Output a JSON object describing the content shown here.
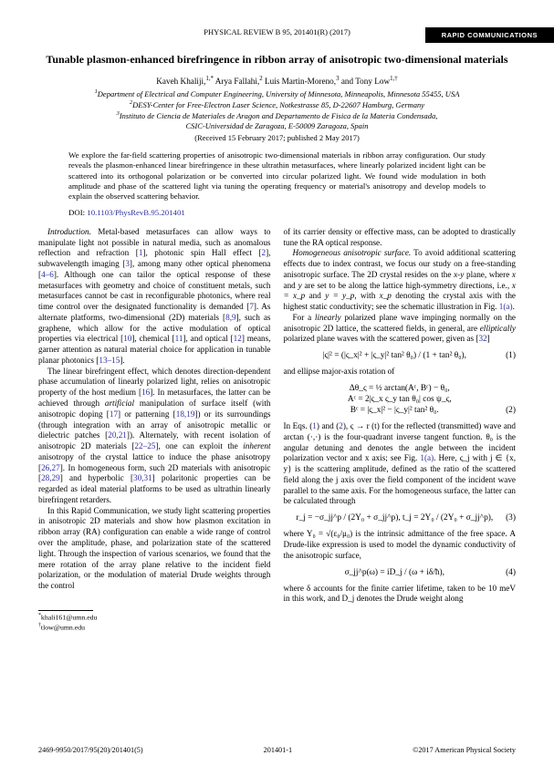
{
  "banner": "RAPID COMMUNICATIONS",
  "journal": "PHYSICAL REVIEW B 95, 201401(R) (2017)",
  "title": "Tunable plasmon-enhanced birefringence in ribbon array of anisotropic two-dimensional materials",
  "authors_html": "Kaveh Khaliji,<sup>1,*</sup> Arya Fallahi,<sup>2</sup> Luis Martin-Moreno,<sup>3</sup> and Tony Low<sup>1,†</sup>",
  "affil1": "Department of Electrical and Computer Engineering, University of Minnesota, Minneapolis, Minnesota 55455, USA",
  "affil2": "DESY-Center for Free-Electron Laser Science, Notkestrasse 85, D-22607 Hamburg, Germany",
  "affil3": "Instituto de Ciencia de Materiales de Aragon and Departamento de Fisica de la Materia Condensada,",
  "affil3b": "CSIC-Universidad de Zaragoza, E-50009 Zaragoza, Spain",
  "received": "(Received 15 February 2017; published 2 May 2017)",
  "abstract": "We explore the far-field scattering properties of anisotropic two-dimensional materials in ribbon array configuration. Our study reveals the plasmon-enhanced linear birefringence in these ultrathin metasurfaces, where linearly polarized incident light can be scattered into its orthogonal polarization or be converted into circular polarized light. We found wide modulation in both amplitude and phase of the scattered light via tuning the operating frequency or material's anisotropy and develop models to explain the observed scattering behavior.",
  "doi_label": "DOI:",
  "doi_link": "10.1103/PhysRevB.95.201401",
  "col1": {
    "p1a": "Introduction.",
    "p1b": " Metal-based metasurfaces can allow ways to manipulate light not possible in natural media, such as anomalous reflection and refraction [",
    "r1": "1",
    "p1c": "], photonic spin Hall effect [",
    "r2": "2",
    "p1d": "], subwavelength imaging [",
    "r3": "3",
    "p1e": "], among many other optical phenomena [",
    "r4": "4–6",
    "p1f": "]. Although one can tailor the optical response of these metasurfaces with geometry and choice of constituent metals, such metasurfaces cannot be cast in reconfigurable photonics, where real time control over the designated functionality is demanded [",
    "r7": "7",
    "p1g": "]. As alternate platforms, two-dimensional (2D) materials [",
    "r8": "8,9",
    "p1h": "], such as graphene, which allow for the active modulation of optical properties via electrical [",
    "r10": "10",
    "p1i": "], chemical [",
    "r11": "11",
    "p1j": "], and optical [",
    "r12": "12",
    "p1k": "] means, garner attention as natural material choice for application in tunable planar photonics [",
    "r13": "13–15",
    "p1l": "].",
    "p2a": "The linear birefringent effect, which denotes direction-dependent phase accumulation of linearly polarized light, relies on anisotropic property of the host medium [",
    "r16": "16",
    "p2b": "]. In metasurfaces, the latter can be achieved through ",
    "p2bi": "artificial",
    "p2c": " manipulation of surface itself (with anisotropic doping [",
    "r17": "17",
    "p2d": "] or patterning [",
    "r18": "18,19",
    "p2e": "]) or its surroundings (through integration with an array of anisotropic metallic or dielectric patches [",
    "r20": "20,21",
    "p2f": "]). Alternately, with recent isolation of anisotropic 2D materials [",
    "r22": "22–25",
    "p2g": "], one can exploit the ",
    "p2gi": "inherent",
    "p2h": " anisotropy of the crystal lattice to induce the phase anisotropy [",
    "r26": "26,27",
    "p2i": "]. In homogeneous form, such 2D materials with anisotropic [",
    "r28": "28,29",
    "p2j": "] and hyperbolic [",
    "r30": "30,31",
    "p2k": "] polaritonic properties can be regarded as ideal material platforms to be used as ultrathin linearly birefringent retarders.",
    "p3": "In this Rapid Communication, we study light scattering properties in anisotropic 2D materials and show how plasmon excitation in ribbon array (RA) configuration can enable a wide range of control over the amplitude, phase, and polarization state of the scattered light. Through the inspection of various scenarios, we found that the mere rotation of the array plane relative to the incident field polarization, or the modulation of material Drude weights through the control"
  },
  "col2": {
    "p0": "of its carrier density or effective mass, can be adopted to drastically tune the RA optical response.",
    "p1a": "Homogeneous anisotropic surface.",
    "p1b": " To avoid additional scattering effects due to index contrast, we focus our study on a free-standing anisotropic surface. The 2D crystal resides on the ",
    "p1bi": "x-y",
    "p1c": " plane, where ",
    "p1ci": "x",
    "p1d": " and ",
    "p1di": "y",
    "p1e": " are set to be along the lattice high-symmetry directions, i.e., ",
    "p1ei": "x = x_p",
    "p1f": " and ",
    "p1fi": "y = y_p",
    "p1g": ", with ",
    "p1gi": "x_p",
    "p1h": " denoting the crystal axis with the highest static conductivity; see the schematic illustration in Fig. ",
    "r1a": "1(a)",
    "p1i": ".",
    "p2a": "For a ",
    "p2ai": "linearly",
    "p2b": " polarized plane wave impinging normally on the anisotropic 2D lattice, the scattered fields, in general, are ",
    "p2bi": "elliptically",
    "p2c": " polarized plane waves with the scattered power, given as [",
    "r32": "32",
    "p2d": "]",
    "eq1": "|ς|² = (|ς_x|² + |ς_y|² tan² θ₀) / (1 + tan² θ₀),",
    "eq1num": "(1)",
    "p3": "and ellipse major-axis rotation of",
    "eq2a": "Δθ_ς = ½ arctan(Aᶜ, Bᶜ) − θ₀,",
    "eq2b": "Aᶜ = 2|ς_x ς_y tan θ₀| cos ψ_ς,",
    "eq2c": "Bᶜ = |ς_x|² − |ς_y|² tan² θ₀.",
    "eq2num": "(2)",
    "p4a": "In Eqs. (",
    "r1e": "1",
    "p4b": ") and (",
    "r2e": "2",
    "p4c": "), ς → r (t) for the reflected (transmitted) wave and arctan (·,·) is the four-quadrant inverse tangent function. θ₀ is the angular detuning and denotes the angle between the incident polarization vector and x axis; see Fig. ",
    "r1b": "1(a)",
    "p4d": ". Here, ς_j with j ∈ {x, y} is the scattering amplitude, defined as the ratio of the scattered field along the j axis over the field component of the incident wave parallel to the same axis. For the homogeneous surface, the latter can be calculated through",
    "eq3": "r_j = −σ_jj^p / (2Y₀ + σ_jj^p),    t_j = 2Y₀ / (2Y₀ + σ_jj^p),",
    "eq3num": "(3)",
    "p5": "where Y₀ = √(ε₀/μ₀) is the intrinsic admittance of the free space. A Drude-like expression is used to model the dynamic conductivity of the anisotropic surface,",
    "eq4": "σ_jj^p(ω) = iD_j / (ω + iδ/ħ),",
    "eq4num": "(4)",
    "p6": "where δ accounts for the finite carrier lifetime, taken to be 10 meV in this work, and D_j denotes the Drude weight along"
  },
  "footnotes": {
    "a": "khali161@umn.edu",
    "b": "tlow@umn.edu"
  },
  "footer": {
    "left": "2469-9950/2017/95(20)/201401(5)",
    "center": "201401-1",
    "right": "©2017 American Physical Society"
  }
}
